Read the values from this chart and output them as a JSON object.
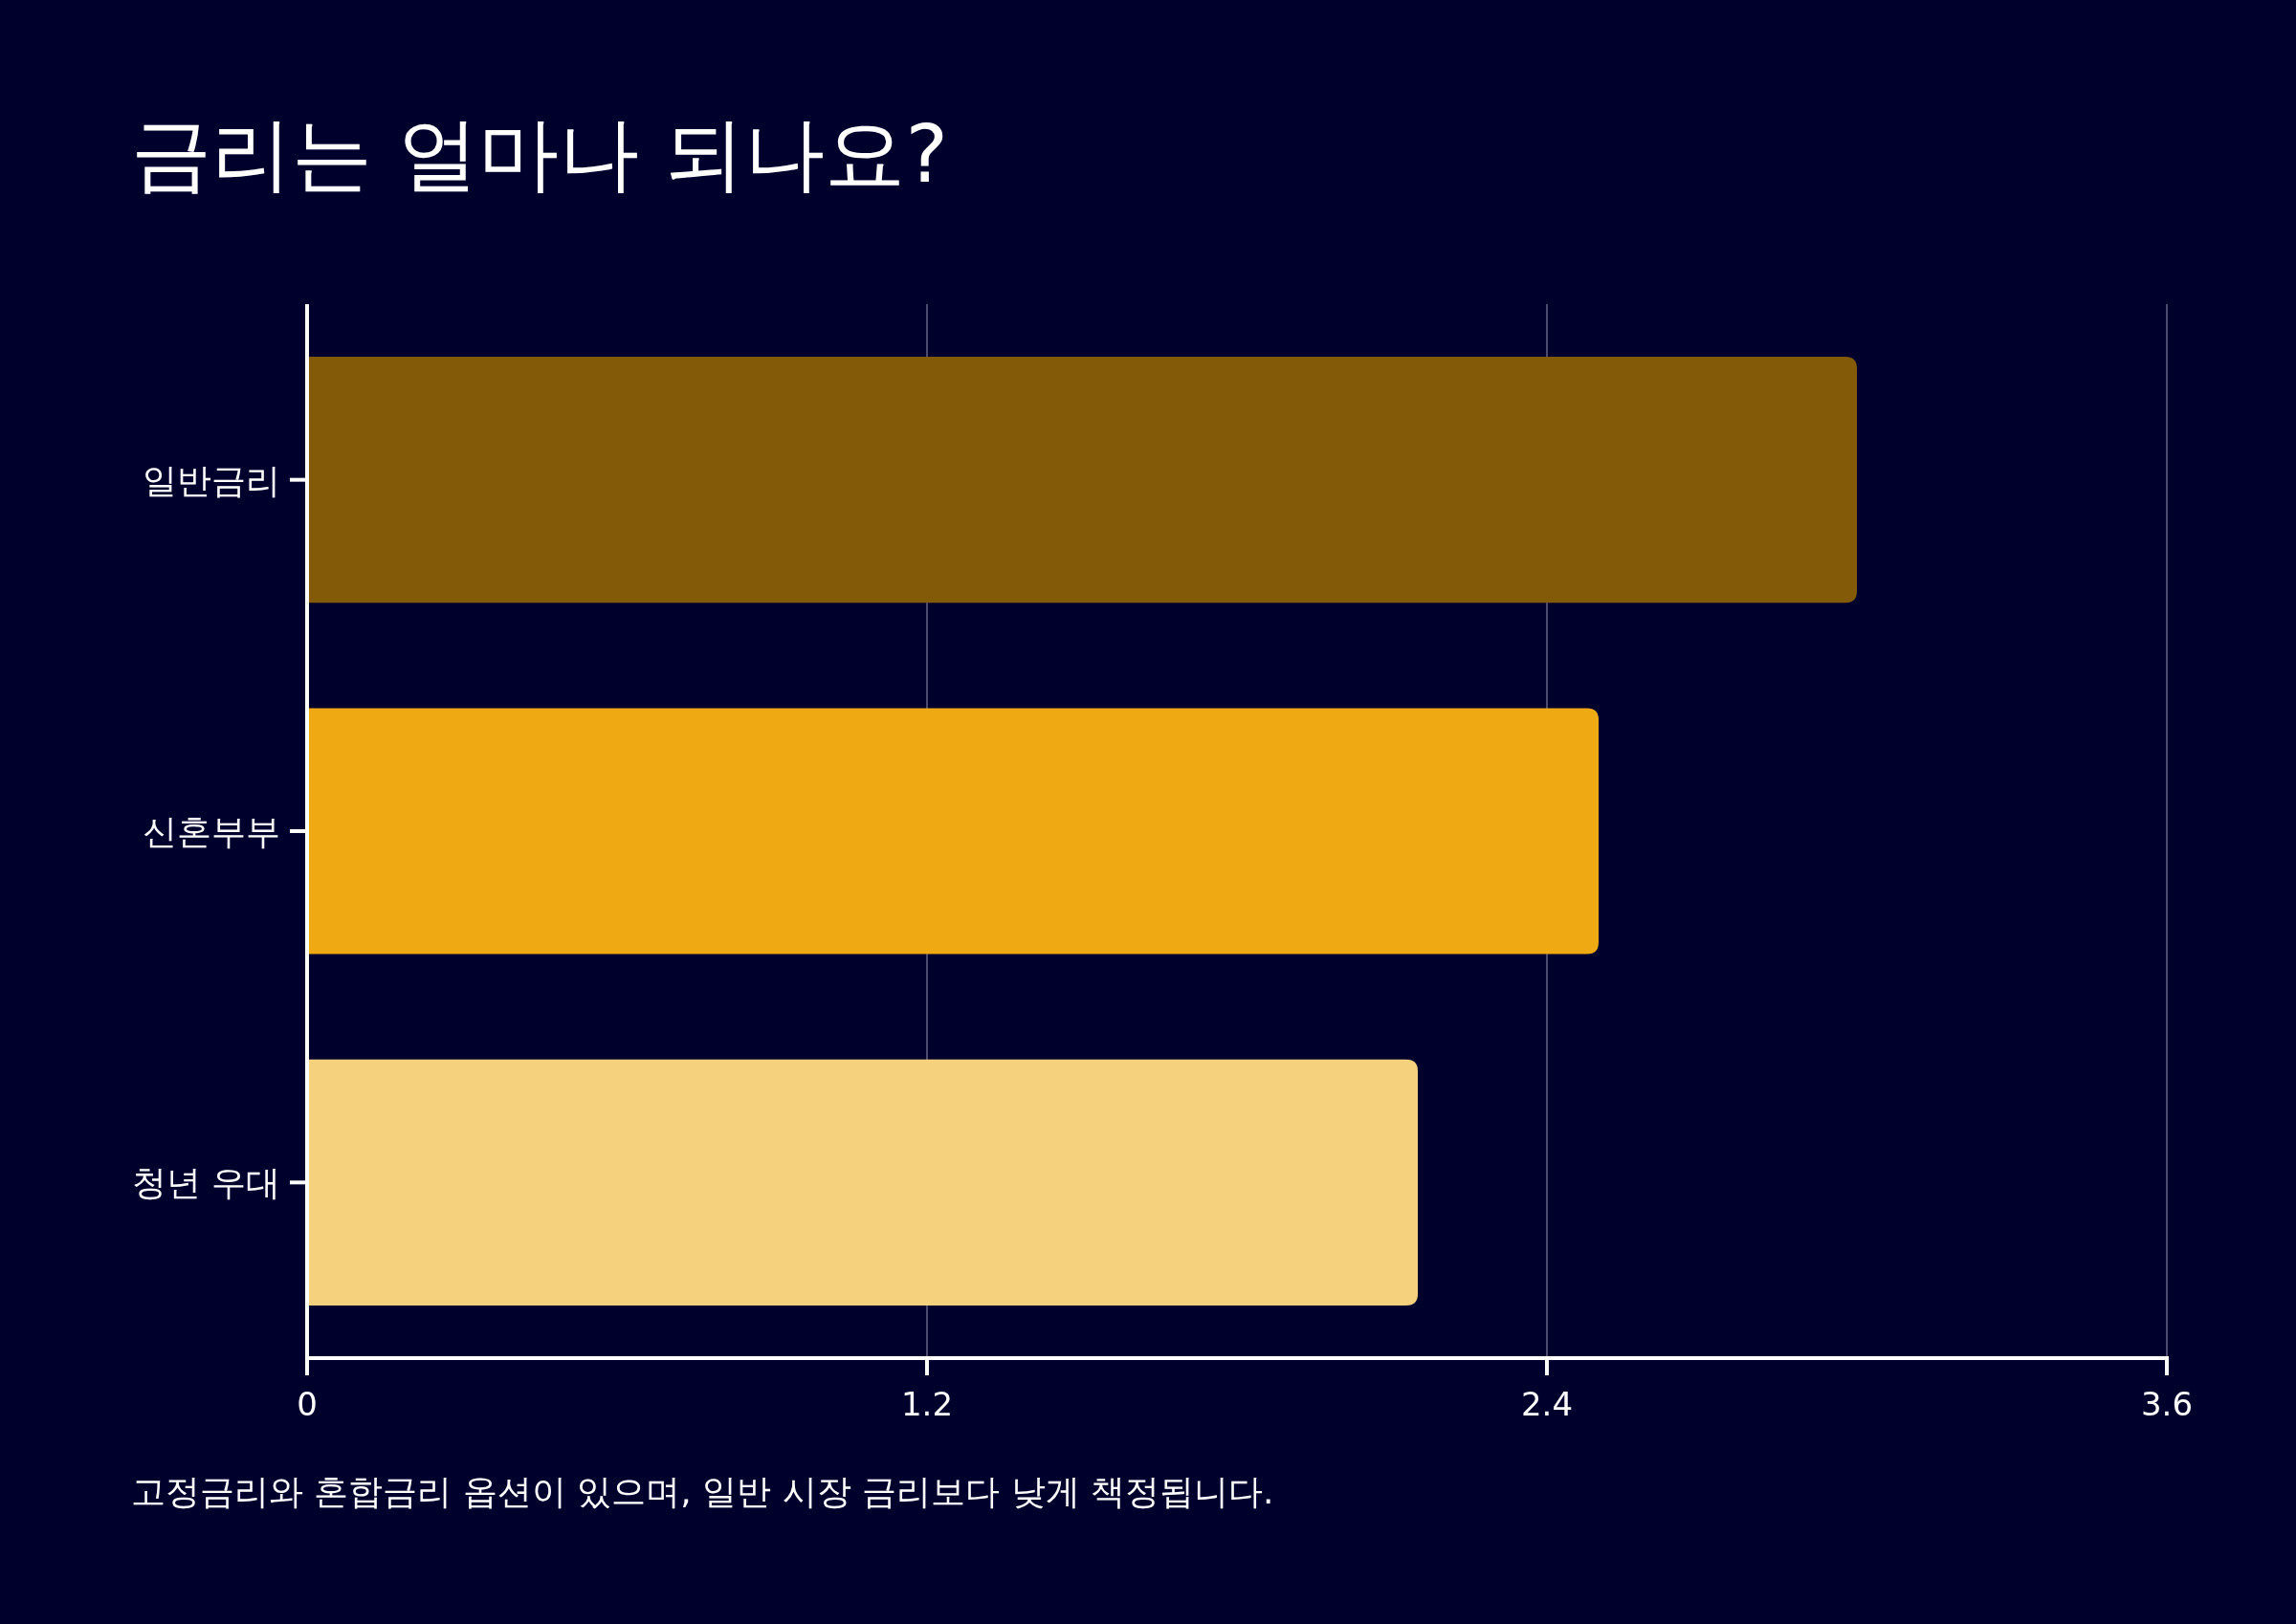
{
  "chart_data": {
    "type": "bar",
    "orientation": "horizontal",
    "title": "금리는 얼마나 되나요?",
    "categories": [
      "일반금리",
      "신혼부부",
      "청년 우대"
    ],
    "values": [
      3.0,
      2.5,
      2.15
    ],
    "colors": [
      "#825a08",
      "#efa913",
      "#f5d17e"
    ],
    "xlim": [
      0,
      3.6
    ],
    "xticks": [
      0,
      1.2,
      2.4,
      3.6
    ],
    "grid": "x",
    "annotations": [
      "고정금리와 혼합금리 옵션이 있으며, 일반 시장 금리보다 낮게 책정됩니다."
    ]
  }
}
